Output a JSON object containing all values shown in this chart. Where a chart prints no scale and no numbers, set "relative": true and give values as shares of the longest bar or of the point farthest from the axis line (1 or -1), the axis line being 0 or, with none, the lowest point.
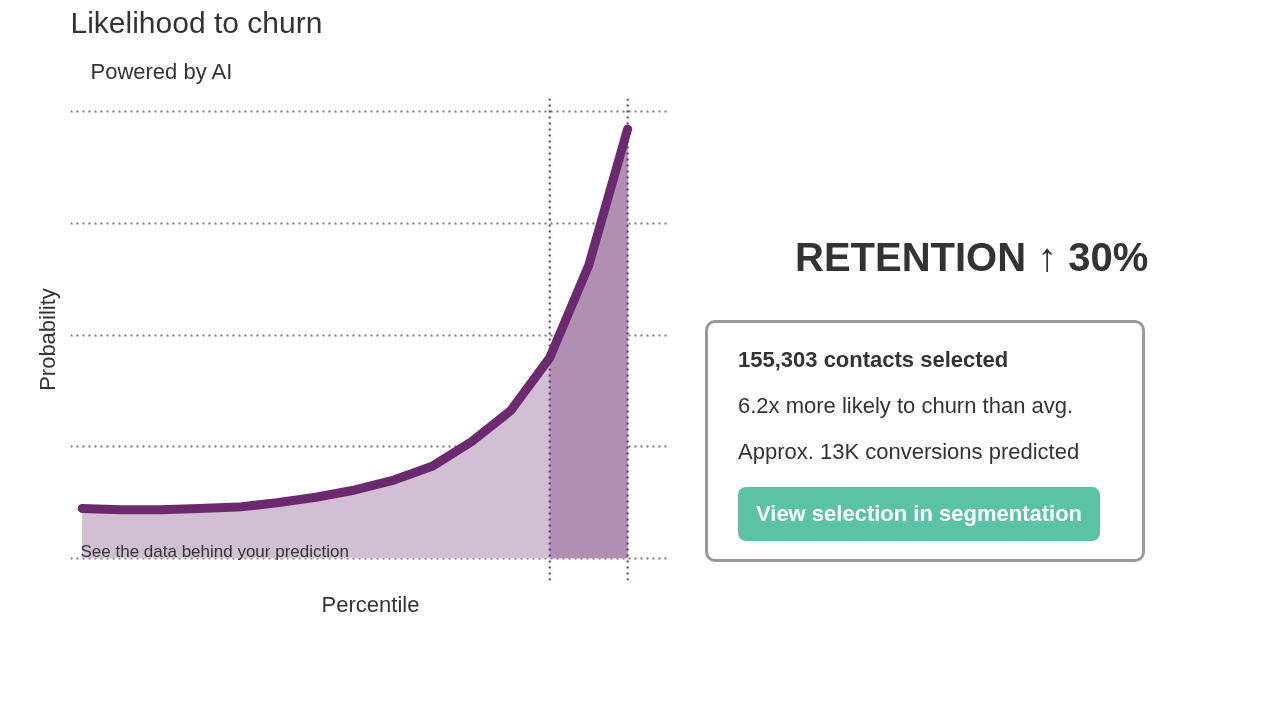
{
  "chart_data": {
    "type": "area",
    "title": "Likelihood to churn",
    "subtitle": "Powered by AI",
    "xlabel": "Percentile",
    "ylabel": "Probability",
    "relative": true,
    "tick_labels": false,
    "grid": "y",
    "line_style": "solid",
    "categories": [
      null,
      null,
      null,
      null,
      null,
      null,
      null,
      null,
      null,
      null,
      null,
      null,
      null,
      null,
      null
    ],
    "series": [
      {
        "color": "#6b2a6f",
        "values": [
          0.116,
          0.113,
          0.113,
          0.116,
          0.119,
          0.129,
          0.142,
          0.159,
          0.182,
          0.215,
          0.272,
          0.344,
          0.467,
          0.682,
          1.0
        ]
      },
      {
        "type": "area",
        "color": "#b08fb2",
        "values": [
          null,
          null,
          null,
          null,
          null,
          null,
          null,
          null,
          null,
          null,
          null,
          null,
          0.467,
          0.682,
          1.0
        ]
      }
    ],
    "annotations": [
      "See the data behind your prediction",
      "RETENTION ↑ 30%",
      "155,303 contacts selected",
      "6.2x more likely to churn than avg.",
      "Approx. 13K conversions predicted",
      "View selection in segmentation"
    ]
  }
}
